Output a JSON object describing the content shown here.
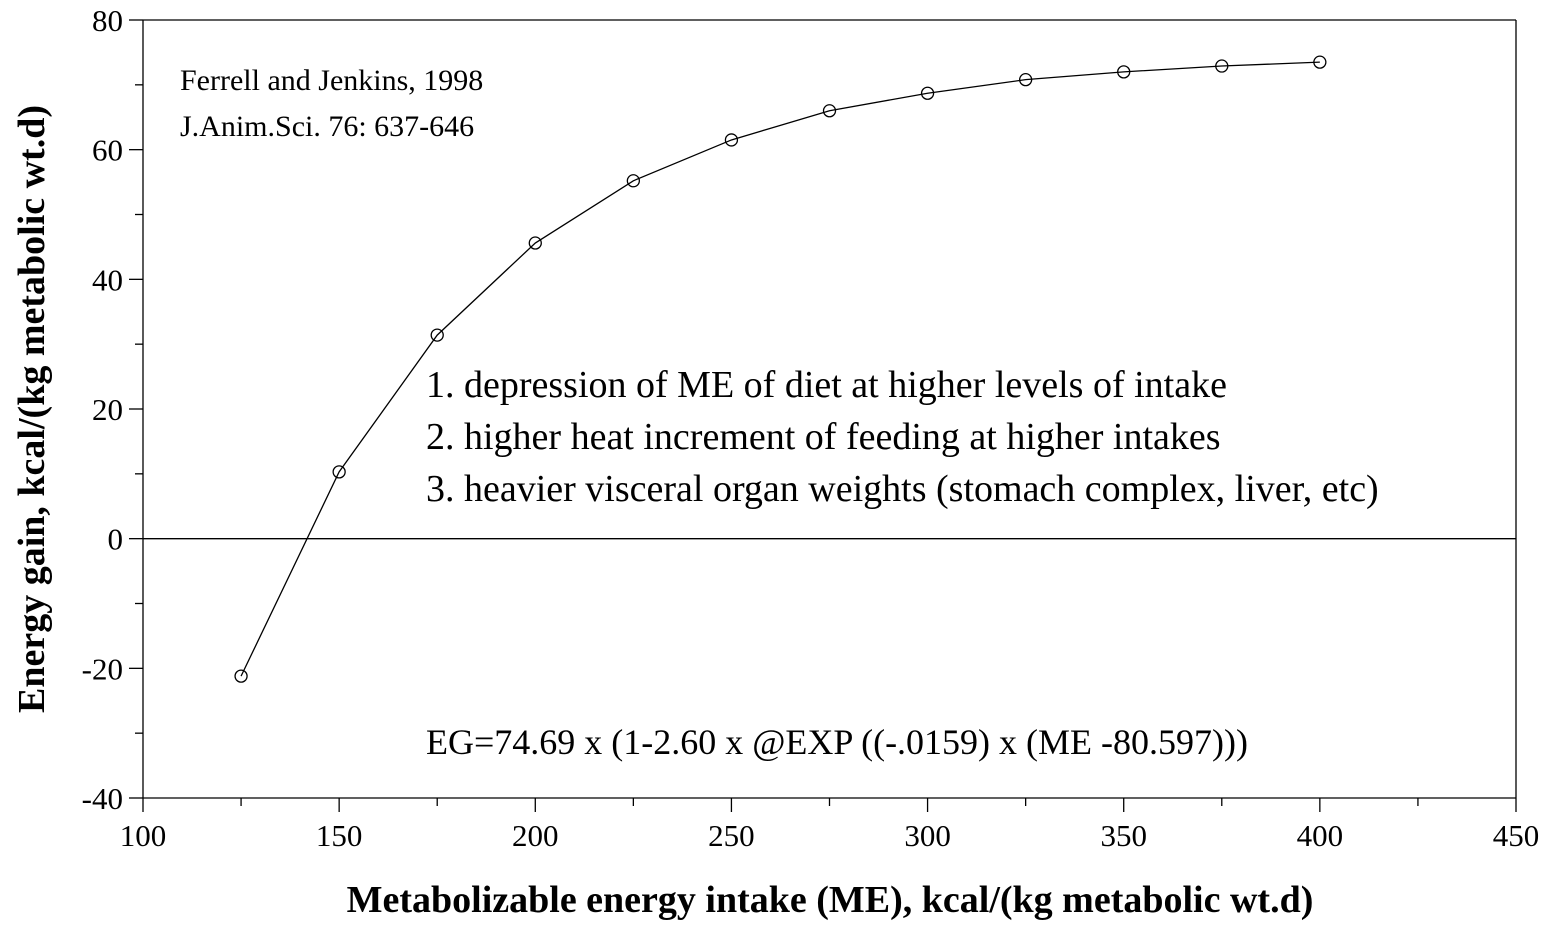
{
  "chart_data": {
    "type": "line",
    "xlabel": "Metabolizable energy intake (ME), kcal/(kg metabolic wt.d)",
    "ylabel": "Energy gain, kcal/(kg metabolic wt.d)",
    "annotations": [
      "Ferrell and Jenkins, 1998",
      "J.Anim.Sci. 76: 637-646",
      "1. depression of ME of diet at higher levels of intake",
      "2. higher heat increment of feeding at higher intakes",
      "3. heavier visceral organ weights (stomach complex, liver, etc)",
      "EG=74.69 x (1-2.60 x @EXP ((-.0159) x (ME -80.597)))"
    ],
    "x": [
      125,
      150,
      175,
      200,
      225,
      250,
      275,
      300,
      325,
      350,
      375,
      400
    ],
    "series": [
      {
        "color": "#000000",
        "values": [
          -21.2,
          10.3,
          31.4,
          45.6,
          55.2,
          61.5,
          66.0,
          68.7,
          70.8,
          72.0,
          72.9,
          73.5
        ]
      }
    ],
    "xlim": [
      100,
      450
    ],
    "xticks": [
      100,
      150,
      200,
      250,
      300,
      350,
      400,
      450
    ],
    "xticks_minor": [
      125,
      175,
      225,
      275,
      325,
      375,
      425
    ],
    "ylim": [
      -40,
      80
    ],
    "yticks": [
      -40,
      -20,
      0,
      20,
      40,
      60,
      80
    ],
    "yticks_minor": [
      -30,
      -10,
      10,
      30,
      50,
      70
    ],
    "zero_line": 0
  }
}
